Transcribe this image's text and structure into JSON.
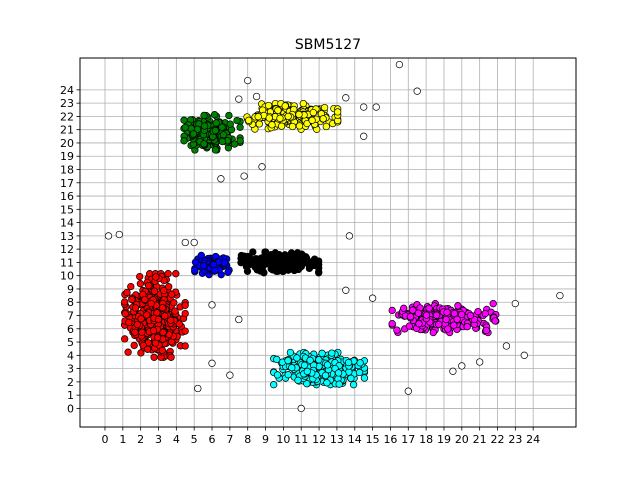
{
  "chart_data": {
    "type": "scatter",
    "title": "SBM5127",
    "xlabel": "",
    "ylabel": "",
    "xlim": [
      -1.4,
      26.4
    ],
    "ylim": [
      -1.4,
      26.4
    ],
    "xticks": [
      0,
      1,
      2,
      3,
      4,
      5,
      6,
      7,
      8,
      9,
      10,
      11,
      12,
      13,
      14,
      15,
      16,
      17,
      18,
      19,
      20,
      21,
      22,
      23,
      24
    ],
    "yticks": [
      0,
      1,
      2,
      3,
      4,
      5,
      6,
      7,
      8,
      9,
      10,
      11,
      12,
      13,
      14,
      15,
      16,
      17,
      18,
      19,
      20,
      21,
      22,
      23,
      24
    ],
    "grid": true,
    "legend": "none",
    "clusters": [
      {
        "color": "#ff0000",
        "center": [
          2.8,
          7.0
        ],
        "spread": [
          1.4,
          2.6
        ],
        "count": 420
      },
      {
        "color": "#00ffff",
        "center": [
          12.0,
          3.0
        ],
        "spread": [
          2.1,
          1.0
        ],
        "count": 320
      },
      {
        "color": "#ff00ff",
        "center": [
          19.0,
          6.8
        ],
        "spread": [
          2.4,
          0.9
        ],
        "count": 260
      },
      {
        "color": "#ffff00",
        "center": [
          10.5,
          22.0
        ],
        "spread": [
          2.1,
          0.8
        ],
        "count": 250
      },
      {
        "color": "#008000",
        "center": [
          6.0,
          20.8
        ],
        "spread": [
          1.3,
          1.1
        ],
        "count": 200
      },
      {
        "color": "#000000",
        "center": [
          9.8,
          11.0
        ],
        "spread": [
          1.8,
          0.65
        ],
        "count": 300
      },
      {
        "color": "#0000ff",
        "center": [
          6.0,
          10.8
        ],
        "spread": [
          0.8,
          0.6
        ],
        "count": 80
      }
    ],
    "outlier_color": "#ffffff",
    "outliers": [
      [
        16.5,
        25.9
      ],
      [
        17.5,
        23.9
      ],
      [
        25.5,
        8.5
      ],
      [
        8.5,
        23.5
      ],
      [
        7.5,
        23.3
      ],
      [
        8.0,
        24.7
      ],
      [
        13.5,
        23.4
      ],
      [
        14.5,
        22.7
      ],
      [
        15.2,
        22.7
      ],
      [
        14.5,
        20.5
      ],
      [
        6.5,
        17.3
      ],
      [
        7.8,
        17.5
      ],
      [
        8.8,
        18.2
      ],
      [
        13.7,
        13.0
      ],
      [
        11.0,
        0.0
      ],
      [
        5.2,
        1.5
      ],
      [
        7.0,
        2.5
      ],
      [
        17.0,
        1.3
      ],
      [
        20.0,
        3.2
      ],
      [
        19.5,
        2.8
      ],
      [
        22.5,
        4.7
      ],
      [
        21.0,
        3.5
      ],
      [
        23.5,
        4.0
      ],
      [
        6.0,
        3.4
      ],
      [
        5.0,
        12.5
      ],
      [
        4.5,
        12.5
      ],
      [
        7.5,
        6.7
      ],
      [
        13.5,
        8.9
      ],
      [
        6.0,
        7.8
      ],
      [
        23.0,
        7.9
      ],
      [
        15.0,
        8.3
      ],
      [
        0.2,
        13.0
      ],
      [
        0.8,
        13.1
      ]
    ]
  }
}
